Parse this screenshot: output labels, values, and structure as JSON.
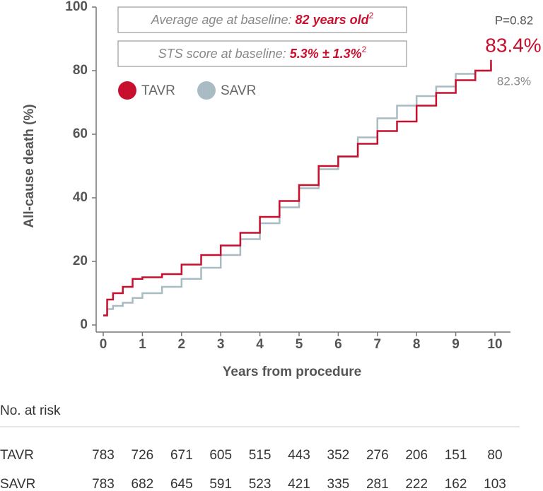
{
  "chart_data": {
    "type": "step",
    "y_label": "All-cause death (%)",
    "x_label": "Years from procedure",
    "xlim": [
      0,
      10
    ],
    "ylim": [
      0,
      100
    ],
    "xticks": [
      0,
      1,
      2,
      3,
      4,
      5,
      6,
      7,
      8,
      9,
      10
    ],
    "yticks": [
      0,
      20,
      40,
      60,
      80,
      100
    ],
    "x": [
      0,
      0.1,
      0.25,
      0.5,
      0.75,
      1,
      1.5,
      2,
      2.5,
      3,
      3.5,
      4,
      4.5,
      5,
      5.5,
      6,
      6.5,
      7,
      7.5,
      8,
      8.5,
      9,
      9.5,
      9.9
    ],
    "series": [
      {
        "name": "TAVR",
        "color": "#c8102e",
        "end_label": "83.4%",
        "values": [
          3,
          8,
          10,
          12,
          14.5,
          15,
          16,
          19,
          22,
          25,
          29,
          34,
          39,
          44,
          50,
          53,
          57,
          61,
          64,
          69,
          73,
          77,
          80,
          83.4
        ]
      },
      {
        "name": "SAVR",
        "color": "#a9bcc4",
        "end_label": "82.3%",
        "values": [
          3,
          5,
          6,
          7,
          8.5,
          10,
          12,
          14.5,
          18,
          22,
          27,
          32,
          37,
          43,
          49,
          53,
          59,
          65,
          69,
          72,
          75,
          79,
          80,
          82.3
        ]
      }
    ],
    "p_value": "P=0.82",
    "info_boxes": [
      {
        "label": "Average age at baseline:",
        "value": "82 years old",
        "ref": "2"
      },
      {
        "label": "STS score at baseline:",
        "value": "5.3% ± 1.3%",
        "ref": "2"
      }
    ],
    "risk_table": {
      "title": "No. at risk",
      "rows": [
        {
          "name": "TAVR",
          "values": [
            783,
            726,
            671,
            605,
            515,
            443,
            352,
            276,
            206,
            151,
            80
          ]
        },
        {
          "name": "SAVR",
          "values": [
            783,
            682,
            645,
            591,
            523,
            421,
            335,
            281,
            222,
            162,
            103
          ]
        }
      ]
    }
  }
}
